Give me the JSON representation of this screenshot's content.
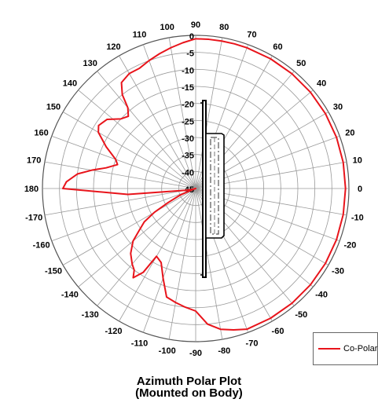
{
  "chart_data": {
    "type": "polar",
    "title": "Azimuth Polar Plot",
    "subtitle": "(Mounted on Body)",
    "angle_labels": [
      0,
      10,
      20,
      30,
      40,
      50,
      60,
      70,
      80,
      90,
      100,
      110,
      120,
      130,
      140,
      150,
      160,
      170,
      180,
      -170,
      -160,
      -150,
      -140,
      -130,
      -120,
      -110,
      -100,
      -90,
      -80,
      -70,
      -60,
      -50,
      -40,
      -30,
      -20,
      -10
    ],
    "radial_ticks": [
      0,
      -5,
      -10,
      -15,
      -20,
      -25,
      -30,
      -35,
      -40,
      -45
    ],
    "radial_range": [
      -45,
      0
    ],
    "grid": true,
    "legend_position": "bottom-right",
    "series": [
      {
        "name": "Co-Polar",
        "color": "#e8141b",
        "angles": [
          0,
          10,
          20,
          30,
          40,
          50,
          60,
          70,
          75,
          80,
          85,
          90,
          95,
          100,
          105,
          110,
          115,
          120,
          125,
          128,
          130,
          133,
          137,
          142,
          147,
          150,
          155,
          160,
          163,
          167,
          170,
          173,
          177,
          180,
          -175,
          -170,
          -165,
          -162,
          -160,
          -157,
          -153,
          -150,
          -147,
          -143,
          -140,
          -135,
          -130,
          -127,
          -125,
          -122,
          -120,
          -115,
          -110,
          -105,
          -100,
          -95,
          -90,
          -85,
          -80,
          -75,
          -70,
          -60,
          -50,
          -40,
          -30,
          -20,
          -10
        ],
        "values": [
          -1,
          -1,
          -1,
          -1,
          -1,
          -1,
          -1,
          -1,
          -1,
          -1,
          -1,
          -1,
          -2,
          -3,
          -4,
          -5,
          -6,
          -6,
          -7,
          -10,
          -14,
          -16,
          -15,
          -12,
          -11,
          -12,
          -16,
          -20,
          -21,
          -18,
          -14,
          -10,
          -7,
          -6,
          -25,
          -42,
          -44,
          -45,
          -44,
          -40,
          -36,
          -31,
          -27,
          -24,
          -21,
          -18,
          -16,
          -15,
          -13,
          -16,
          -22,
          -21,
          -17,
          -12,
          -11,
          -10,
          -9,
          -5,
          -3,
          -2,
          -1,
          -1,
          -1,
          -1,
          -1,
          -1,
          -1
        ]
      }
    ]
  }
}
